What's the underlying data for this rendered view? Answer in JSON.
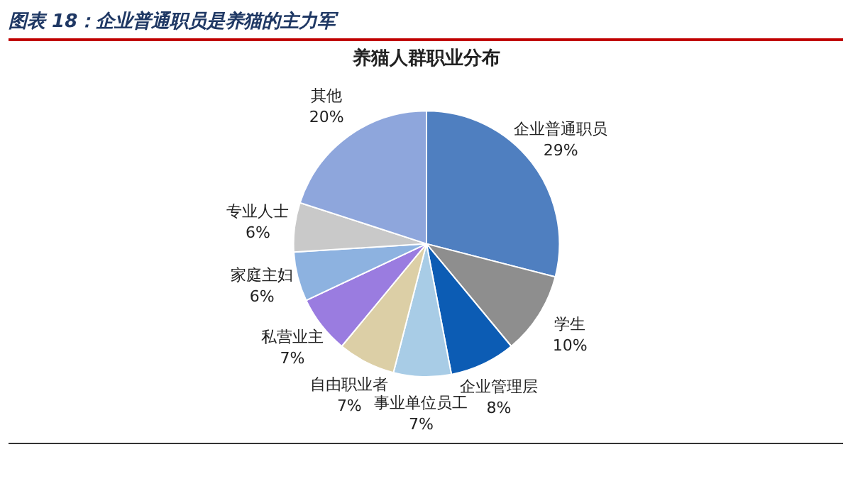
{
  "chart_data": {
    "type": "pie",
    "title": "图表 18：企业普通职员是养猫的主力军",
    "subtitle": "养猫人群职业分布",
    "categories": [
      "企业普通职员",
      "学生",
      "企业管理层",
      "事业单位员工",
      "自由职业者",
      "私营业主",
      "家庭主妇",
      "专业人士",
      "其他"
    ],
    "values": [
      29,
      10,
      8,
      7,
      7,
      7,
      6,
      6,
      20
    ],
    "value_labels": [
      "29%",
      "10%",
      "8%",
      "7%",
      "7%",
      "7%",
      "6%",
      "6%",
      "20%"
    ],
    "colors": [
      "#4f7fc0",
      "#8e8e8e",
      "#0c5cb4",
      "#a8cce6",
      "#dccfa6",
      "#9a7ce0",
      "#8db2e0",
      "#c9c9c9",
      "#8ea6dc"
    ],
    "legend": false
  }
}
